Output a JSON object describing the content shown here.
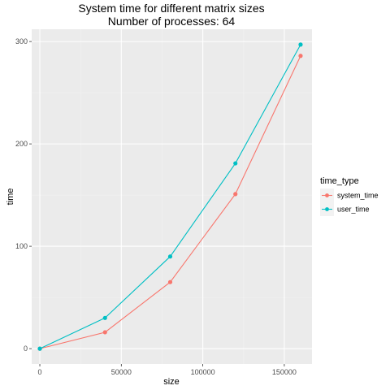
{
  "chart_data": {
    "type": "line",
    "title": "System time for different matrix sizes",
    "subtitle": "Number of processes: 64",
    "xlabel": "size",
    "ylabel": "time",
    "xlim": [
      -5000,
      167000
    ],
    "ylim": [
      -15,
      312
    ],
    "x_ticks": [
      0,
      50000,
      100000,
      150000
    ],
    "x_tick_labels": [
      "0",
      "50000",
      "100000",
      "150000"
    ],
    "y_ticks": [
      0,
      100,
      200,
      300
    ],
    "y_tick_labels": [
      "0",
      "100",
      "200",
      "300"
    ],
    "grid": true,
    "legend_position": "right",
    "legend_title": "time_type",
    "series": [
      {
        "name": "system_time",
        "color": "#F8766D",
        "x": [
          0,
          40000,
          80000,
          120000,
          160000
        ],
        "y": [
          0,
          16,
          65,
          151,
          286
        ]
      },
      {
        "name": "user_time",
        "color": "#00BFC4",
        "x": [
          0,
          40000,
          80000,
          120000,
          160000
        ],
        "y": [
          0,
          30,
          90,
          181,
          297
        ]
      }
    ]
  }
}
